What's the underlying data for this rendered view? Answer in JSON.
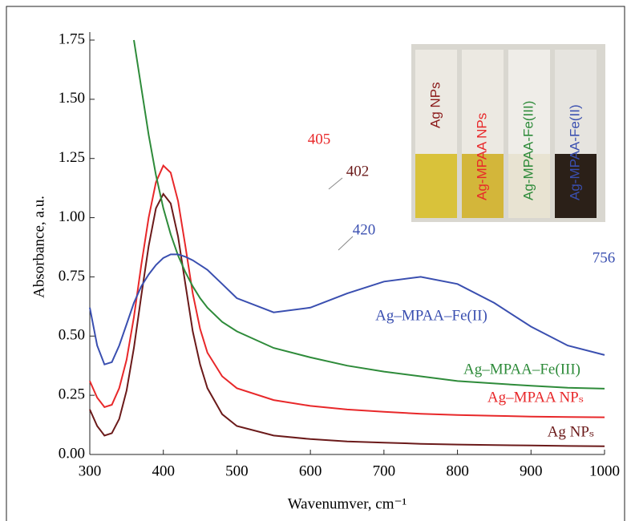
{
  "chart_data": {
    "type": "line",
    "x_label": "Wavenumver, cm⁻¹",
    "y_label": "Absorbance, a.u.",
    "x": [
      300,
      310,
      320,
      330,
      340,
      350,
      360,
      370,
      380,
      390,
      400,
      410,
      420,
      430,
      440,
      450,
      460,
      480,
      500,
      550,
      600,
      650,
      700,
      750,
      800,
      850,
      900,
      950,
      1000
    ],
    "series": [
      {
        "name": "Ag NPₛ",
        "color": "#6b1a1a",
        "values": [
          0.19,
          0.12,
          0.08,
          0.09,
          0.15,
          0.27,
          0.45,
          0.67,
          0.88,
          1.04,
          1.1,
          1.06,
          0.92,
          0.72,
          0.52,
          0.38,
          0.28,
          0.17,
          0.12,
          0.08,
          0.065,
          0.055,
          0.05,
          0.045,
          0.042,
          0.04,
          0.038,
          0.036,
          0.035
        ]
      },
      {
        "name": "Ag–MPAA NPₛ",
        "color": "#e8282a",
        "values": [
          0.31,
          0.24,
          0.2,
          0.21,
          0.28,
          0.4,
          0.58,
          0.8,
          1.0,
          1.15,
          1.22,
          1.19,
          1.07,
          0.88,
          0.68,
          0.53,
          0.43,
          0.33,
          0.28,
          0.23,
          0.205,
          0.19,
          0.18,
          0.172,
          0.167,
          0.163,
          0.16,
          0.158,
          0.157
        ]
      },
      {
        "name": "Ag–MPAA–Fe(III)",
        "color": "#2e8b3a",
        "values": [
          null,
          null,
          null,
          null,
          null,
          null,
          1.75,
          1.55,
          1.35,
          1.18,
          1.04,
          0.93,
          0.84,
          0.77,
          0.71,
          0.66,
          0.62,
          0.56,
          0.52,
          0.45,
          0.41,
          0.375,
          0.35,
          0.33,
          0.31,
          0.3,
          0.29,
          0.282,
          0.278
        ]
      },
      {
        "name": "Ag–MPAA–Fe(II)",
        "color": "#3a4fb0",
        "values": [
          0.62,
          0.46,
          0.38,
          0.39,
          0.46,
          0.55,
          0.64,
          0.71,
          0.76,
          0.8,
          0.83,
          0.845,
          0.845,
          0.835,
          0.82,
          0.8,
          0.78,
          0.72,
          0.66,
          0.6,
          0.62,
          0.68,
          0.73,
          0.75,
          0.72,
          0.64,
          0.54,
          0.46,
          0.42
        ]
      }
    ],
    "annotations": [
      "405",
      "402",
      "420",
      "756"
    ],
    "inset_labels": [
      "Ag NPs",
      "Ag-MPAA NPs",
      "Ag-MPAA-Fe(III)",
      "Ag-MPAA-Fe(II)"
    ],
    "xlim": [
      300,
      1000
    ],
    "xticks": [
      300,
      400,
      500,
      600,
      700,
      800,
      900,
      1000
    ],
    "ylim": [
      0,
      1.75
    ],
    "yticks": [
      {
        "value": 0,
        "label": "0.00"
      },
      {
        "value": 0.25,
        "label": "0.25"
      },
      {
        "value": 0.5,
        "label": "0.50"
      },
      {
        "value": 0.75,
        "label": "0.75"
      },
      {
        "value": 1,
        "label": "1.00"
      },
      {
        "value": 1.25,
        "label": "1.25"
      },
      {
        "value": 1.5,
        "label": "1.50"
      },
      {
        "value": 1.75,
        "label": "1.75"
      }
    ]
  }
}
